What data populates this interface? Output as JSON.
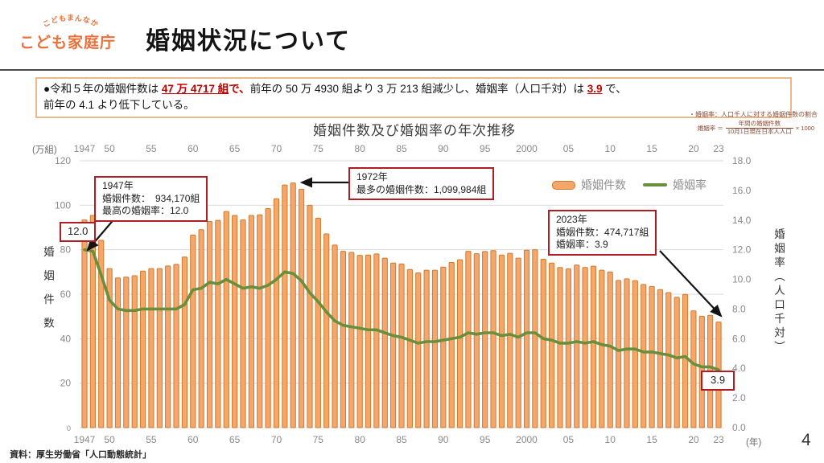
{
  "page": {
    "title": "婚姻状況について",
    "page_number": "4",
    "source": "資料：厚生労働省「人口動態統計」"
  },
  "logo": {
    "arc_text": "こどもまんなか",
    "name": "こども家庭庁",
    "color": "#E8703A"
  },
  "summary": {
    "segments": [
      {
        "t": "●令和５年の婚姻件数は ",
        "s": "n"
      },
      {
        "t": "47 万 4717 組",
        "s": "em"
      },
      {
        "t": "で、",
        "s": "red"
      },
      {
        "t": "前年の 50 万 4930 組より 3 万 213 組減少し、婚姻率（人口千対）は ",
        "s": "n"
      },
      {
        "t": "3.9",
        "s": "em"
      },
      {
        "t": " で、",
        "s": "n"
      },
      {
        "t": "",
        "s": "br"
      },
      {
        "t": "前年の 4.1 より低下している。",
        "s": "n"
      }
    ]
  },
  "note": {
    "line1": "・婚姻率：人口千人に対する婚姻件数の割合",
    "formula_lhs": "婚姻率 ＝",
    "formula_numerator": "年間の婚姻件数",
    "formula_denominator": "10月1日現在日本人人口",
    "formula_suffix": "× 1000"
  },
  "callouts": {
    "c1947": {
      "line1": "1947年",
      "line2": "婚姻件数：　934,170組",
      "line3": "最高の婚姻率：12.0"
    },
    "r1947": "12.0",
    "c1972": {
      "line1": "1972年",
      "line2": "最多の婚姻件数：1,099,984組"
    },
    "c2023": {
      "line1": "2023年",
      "line2": "婚姻件数：474,717組",
      "line3": "婚姻率：3.9"
    },
    "r2023": "3.9"
  },
  "chart_data": {
    "type": "bar+line",
    "title": "婚姻件数及び婚姻率の年次推移",
    "x_unit_label": "(年)",
    "years": [
      1947,
      1948,
      1949,
      1950,
      1951,
      1952,
      1953,
      1954,
      1955,
      1956,
      1957,
      1958,
      1959,
      1960,
      1961,
      1962,
      1963,
      1964,
      1965,
      1966,
      1967,
      1968,
      1969,
      1970,
      1971,
      1972,
      1973,
      1974,
      1975,
      1976,
      1977,
      1978,
      1979,
      1980,
      1981,
      1982,
      1983,
      1984,
      1985,
      1986,
      1987,
      1988,
      1989,
      1990,
      1991,
      1992,
      1993,
      1994,
      1995,
      1996,
      1997,
      1998,
      1999,
      2000,
      2001,
      2002,
      2003,
      2004,
      2005,
      2006,
      2007,
      2008,
      2009,
      2010,
      2011,
      2012,
      2013,
      2014,
      2015,
      2016,
      2017,
      2018,
      2019,
      2020,
      2021,
      2022,
      2023
    ],
    "x_tick_labels": [
      {
        "label": "1947",
        "year": 1947
      },
      {
        "label": "50",
        "year": 1950
      },
      {
        "label": "55",
        "year": 1955
      },
      {
        "label": "60",
        "year": 1960
      },
      {
        "label": "65",
        "year": 1965
      },
      {
        "label": "70",
        "year": 1970
      },
      {
        "label": "75",
        "year": 1975
      },
      {
        "label": "80",
        "year": 1980
      },
      {
        "label": "85",
        "year": 1985
      },
      {
        "label": "90",
        "year": 1990
      },
      {
        "label": "95",
        "year": 1995
      },
      {
        "label": "2000",
        "year": 2000
      },
      {
        "label": "05",
        "year": 2005
      },
      {
        "label": "10",
        "year": 2010
      },
      {
        "label": "15",
        "year": 2015
      },
      {
        "label": "20",
        "year": 2020
      },
      {
        "label": "23",
        "year": 2023
      }
    ],
    "left_axis": {
      "unit_label": "(万組)",
      "vertical_label": "婚姻件数",
      "min": 0,
      "max": 120,
      "ticks": [
        0,
        20,
        40,
        60,
        80,
        100,
        120
      ]
    },
    "right_axis": {
      "vertical_label": "婚姻率（人口千対）",
      "min": 0,
      "max": 18,
      "ticks": [
        0,
        2,
        4,
        6,
        8,
        10,
        12,
        14,
        16,
        18
      ]
    },
    "series": [
      {
        "name": "婚姻件数",
        "type": "bar",
        "unit": "万組",
        "axis": "left",
        "values": [
          93.4,
          95.4,
          84.2,
          71.5,
          67.3,
          67.7,
          68.3,
          70.4,
          71.5,
          71.5,
          72.7,
          73.4,
          76.7,
          86.6,
          89.0,
          92.7,
          93.2,
          97.2,
          95.4,
          93.4,
          95.4,
          95.7,
          98.5,
          102.9,
          109.1,
          110.0,
          107.2,
          100.0,
          94.2,
          87.1,
          82.1,
          79.3,
          78.8,
          77.5,
          77.6,
          78.1,
          76.2,
          74.0,
          73.6,
          71.1,
          69.6,
          70.8,
          70.8,
          72.2,
          74.3,
          75.5,
          79.3,
          78.2,
          79.2,
          79.6,
          77.6,
          78.4,
          76.2,
          79.8,
          80.0,
          75.7,
          74.0,
          72.0,
          71.4,
          73.1,
          72.0,
          72.6,
          70.8,
          70.0,
          66.2,
          66.9,
          66.1,
          64.4,
          63.5,
          62.1,
          60.7,
          58.6,
          59.9,
          52.5,
          50.1,
          50.5,
          47.5
        ]
      },
      {
        "name": "婚姻率",
        "type": "line",
        "unit": "人口千対",
        "axis": "right",
        "values": [
          12.0,
          11.9,
          10.3,
          8.6,
          8.0,
          7.9,
          7.9,
          8.0,
          8.0,
          8.0,
          8.0,
          8.0,
          8.3,
          9.3,
          9.4,
          9.8,
          9.7,
          10.0,
          9.7,
          9.4,
          9.5,
          9.4,
          9.6,
          10.0,
          10.5,
          10.4,
          9.9,
          9.1,
          8.5,
          7.8,
          7.2,
          6.9,
          6.8,
          6.7,
          6.6,
          6.6,
          6.4,
          6.2,
          6.1,
          5.9,
          5.7,
          5.8,
          5.8,
          5.9,
          6.0,
          6.1,
          6.4,
          6.3,
          6.4,
          6.4,
          6.2,
          6.3,
          6.1,
          6.4,
          6.4,
          6.0,
          5.9,
          5.7,
          5.7,
          5.8,
          5.7,
          5.8,
          5.6,
          5.5,
          5.2,
          5.3,
          5.3,
          5.1,
          5.1,
          5.0,
          4.9,
          4.7,
          4.8,
          4.3,
          4.1,
          4.1,
          3.9
        ]
      }
    ],
    "colors": {
      "bar_fill": "#F5A76B",
      "bar_border": "#CF7A2D",
      "line": "#6A8F3C",
      "callout_border": "#B01E24",
      "summary_border": "#ECB98C"
    }
  }
}
